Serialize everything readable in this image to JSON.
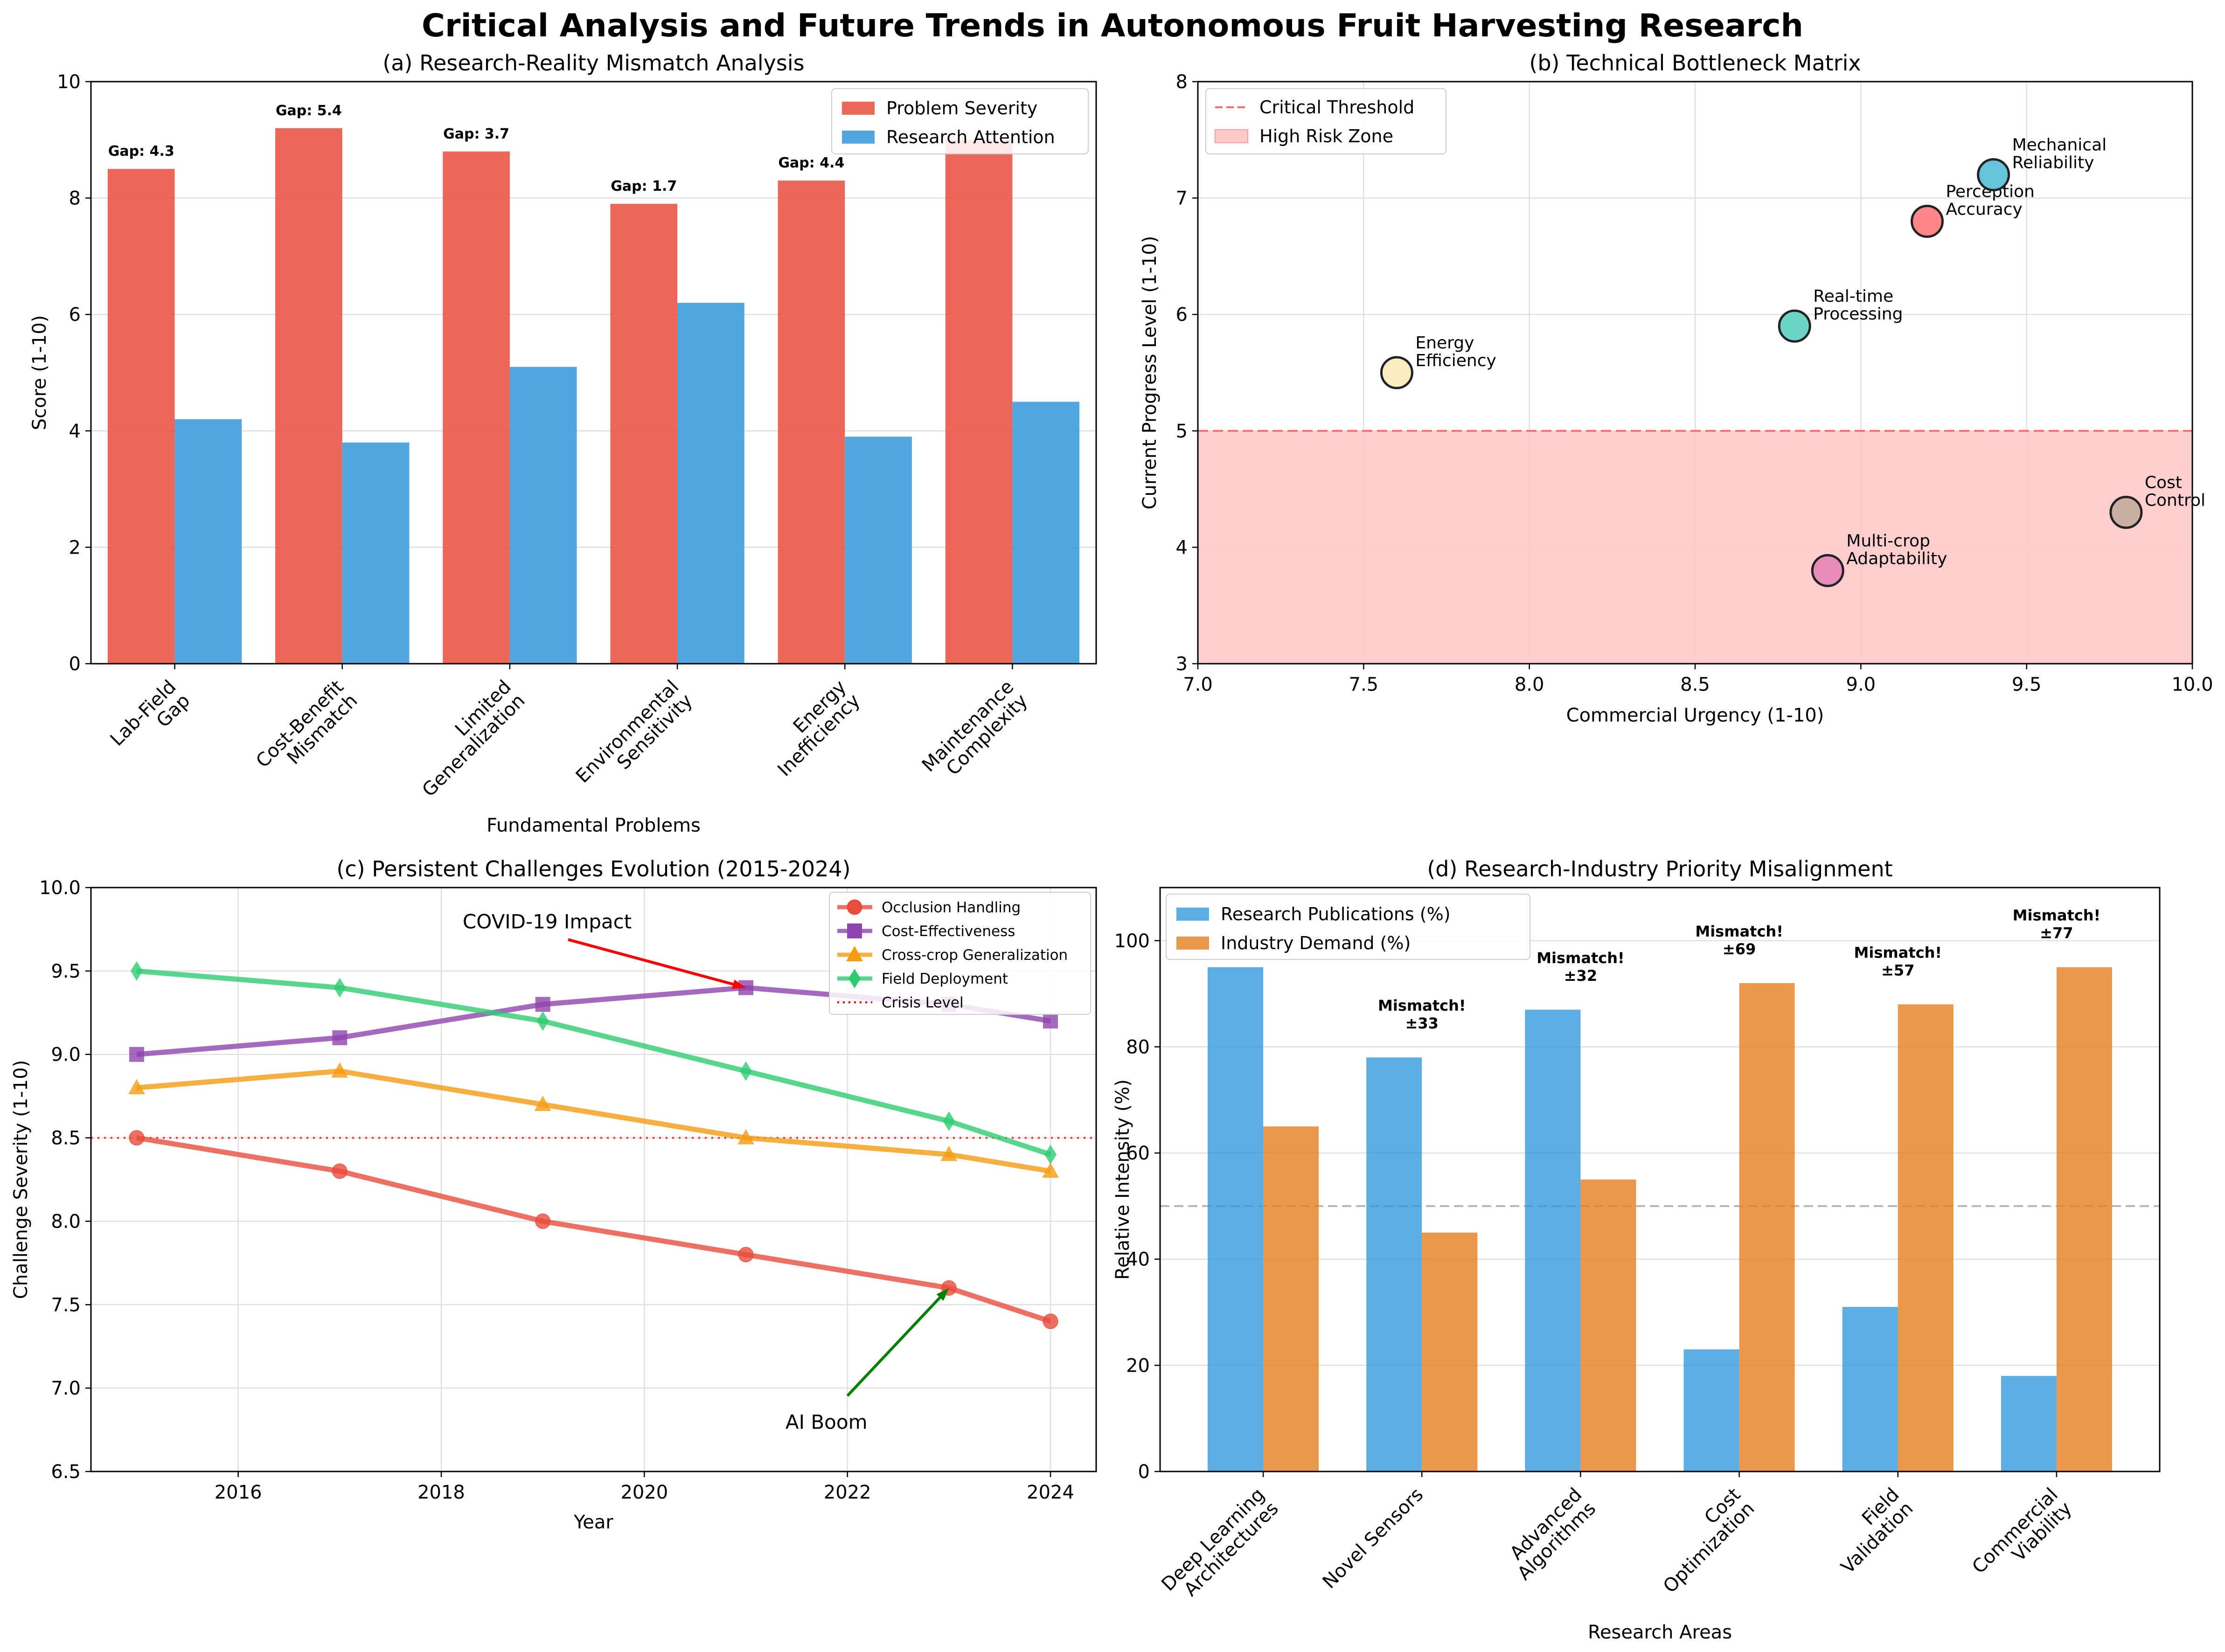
{
  "figure": {
    "title": "Critical Analysis and Future Trends in Autonomous Fruit Harvesting Research"
  },
  "chart_data": [
    {
      "id": "a",
      "type": "bar",
      "title": "(a) Research-Reality Mismatch Analysis",
      "xlabel": "Fundamental Problems",
      "ylabel": "Score (1-10)",
      "ylim": [
        0,
        10
      ],
      "yticks": [
        0,
        2,
        4,
        6,
        8,
        10
      ],
      "grid": true,
      "legend_position": "top-right",
      "categories": [
        [
          "Lab-Field",
          "Gap"
        ],
        [
          "Cost-Benefit",
          "Mismatch"
        ],
        [
          "Limited",
          "Generalization"
        ],
        [
          "Environmental",
          "Sensitivity"
        ],
        [
          "Energy",
          "Inefficiency"
        ],
        [
          "Maintenance",
          "Complexity"
        ]
      ],
      "series": [
        {
          "name": "Problem Severity",
          "color": "#e74c3c",
          "values": [
            8.5,
            9.2,
            8.8,
            7.9,
            8.3,
            9.0
          ]
        },
        {
          "name": "Research Attention",
          "color": "#3498db",
          "values": [
            4.2,
            3.8,
            5.1,
            6.2,
            3.9,
            4.5
          ]
        }
      ],
      "annotations": [
        {
          "text": "Gap: 4.3",
          "color": "#ff0000"
        },
        {
          "text": "Gap: 5.4",
          "color": "#ff0000"
        },
        {
          "text": "Gap: 3.7",
          "color": "#ff0000"
        },
        {
          "text": "Gap: 1.7",
          "color": "#f39c12"
        },
        {
          "text": "Gap: 4.4",
          "color": "#ff0000"
        }
      ]
    },
    {
      "id": "b",
      "type": "scatter",
      "title": "(b) Technical Bottleneck Matrix",
      "xlabel": "Commercial Urgency (1-10)",
      "ylabel": "Current Progress Level (1-10)",
      "xlim": [
        7.0,
        10.0
      ],
      "ylim": [
        3,
        8
      ],
      "xticks": [
        "7.0",
        "7.5",
        "8.0",
        "8.5",
        "9.0",
        "9.5",
        "10.0"
      ],
      "yticks": [
        3,
        4,
        5,
        6,
        7,
        8
      ],
      "grid": true,
      "legend_position": "top-left",
      "critical_threshold": 5,
      "legend": [
        {
          "name": "Critical Threshold",
          "color": "#ff6b6b"
        },
        {
          "name": "High Risk Zone",
          "color": "#ffc9c9"
        }
      ],
      "points": [
        {
          "label": [
            "Perception",
            "Accuracy"
          ],
          "x": 9.2,
          "y": 6.8,
          "color": "#ff8787"
        },
        {
          "label": [
            "Real-time",
            "Processing"
          ],
          "x": 8.8,
          "y": 5.9,
          "color": "#6bd5c9"
        },
        {
          "label": [
            "Mechanical",
            "Reliability"
          ],
          "x": 9.4,
          "y": 7.2,
          "color": "#66c3dc"
        },
        {
          "label": [
            "Energy",
            "Efficiency"
          ],
          "x": 7.6,
          "y": 5.5,
          "color": "#fdedc1"
        },
        {
          "label": [
            "Multi-crop",
            "Adaptability"
          ],
          "x": 8.9,
          "y": 3.8,
          "color": "#e78bb8"
        },
        {
          "label": [
            "Cost",
            "Control"
          ],
          "x": 9.8,
          "y": 4.3,
          "color": "#c9b0a0"
        }
      ]
    },
    {
      "id": "c",
      "type": "line",
      "title": "(c) Persistent Challenges Evolution (2015-2024)",
      "xlabel": "Year",
      "ylabel": "Challenge Severity (1-10)",
      "xlim": [
        2014.55,
        2024.45
      ],
      "ylim": [
        6.5,
        10.0
      ],
      "xticks": [
        2016,
        2018,
        2020,
        2022,
        2024
      ],
      "yticks": [
        "6.5",
        "7.0",
        "7.5",
        "8.0",
        "8.5",
        "9.0",
        "9.5",
        "10.0"
      ],
      "grid": true,
      "legend_position": "top-right",
      "x": [
        2015,
        2017,
        2019,
        2021,
        2023,
        2024
      ],
      "crisis_level": 8.5,
      "crisis_label": "Crisis Level",
      "crisis_color": "#ff0000",
      "series": [
        {
          "name": "Occlusion Handling",
          "color": "#e74c3c",
          "marker": "circle",
          "values": [
            8.5,
            8.3,
            8.0,
            7.8,
            7.6,
            7.4
          ]
        },
        {
          "name": "Cost-Effectiveness",
          "color": "#8e44ad",
          "marker": "square",
          "values": [
            9.0,
            9.1,
            9.3,
            9.4,
            9.3,
            9.2
          ]
        },
        {
          "name": "Cross-crop Generalization",
          "color": "#f39c12",
          "marker": "triangle",
          "values": [
            8.8,
            8.9,
            8.7,
            8.5,
            8.4,
            8.3
          ]
        },
        {
          "name": "Field Deployment",
          "color": "#2ecc71",
          "marker": "diamond",
          "values": [
            9.5,
            9.4,
            9.2,
            8.9,
            8.6,
            8.4
          ]
        }
      ],
      "annotations": [
        {
          "text": "COVID-19 Impact",
          "color": "#ff0000",
          "point_x": 2021,
          "point_y": 9.4,
          "text_x": 2019.25,
          "text_y": 9.8
        },
        {
          "text": "AI Boom",
          "color": "#008000",
          "point_x": 2023,
          "point_y": 7.6,
          "text_x": 2022.0,
          "text_y": 6.8
        }
      ]
    },
    {
      "id": "d",
      "type": "bar",
      "title": "(d) Research-Industry Priority Misalignment",
      "xlabel": "Research Areas",
      "ylabel": "Relative Intensity (%)",
      "ylim": [
        0,
        110
      ],
      "yticks": [
        0,
        20,
        40,
        60,
        80,
        100
      ],
      "grid": true,
      "legend_position": "top-left",
      "reference_line": 50,
      "categories": [
        [
          "Deep Learning",
          "Architectures"
        ],
        [
          "Novel Sensors"
        ],
        [
          "Advanced",
          "Algorithms"
        ],
        [
          "Cost",
          "Optimization"
        ],
        [
          "Field",
          "Validation"
        ],
        [
          "Commercial",
          "Viability"
        ]
      ],
      "series": [
        {
          "name": "Research Publications (%)",
          "color": "#3498db",
          "values": [
            95,
            78,
            87,
            23,
            31,
            18
          ]
        },
        {
          "name": "Industry Demand (%)",
          "color": "#e67e22",
          "values": [
            65,
            45,
            55,
            92,
            88,
            95
          ]
        }
      ],
      "annotations": [
        null,
        [
          "Mismatch!",
          "±33"
        ],
        [
          "Mismatch!",
          "±32"
        ],
        [
          "Mismatch!",
          "±69"
        ],
        [
          "Mismatch!",
          "±57"
        ],
        [
          "Mismatch!",
          "±77"
        ]
      ]
    }
  ]
}
